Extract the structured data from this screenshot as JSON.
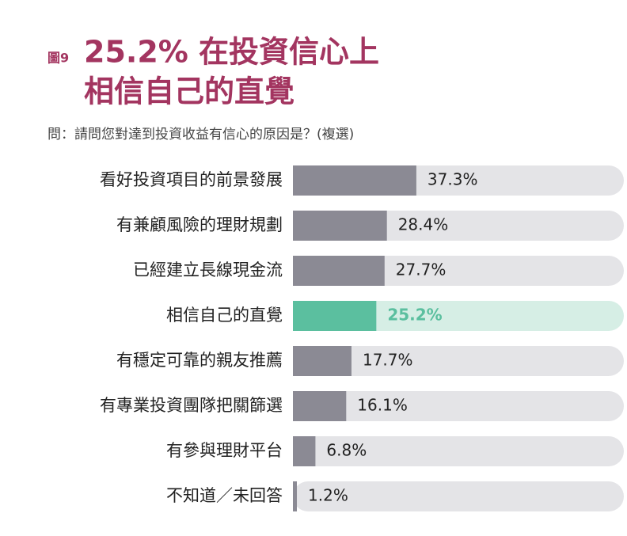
{
  "chart_data": {
    "type": "barh",
    "figure_label": "圖9",
    "title": [
      "25.2% 在投資信心上",
      "相信自己的直覺"
    ],
    "subtitle": "問：請問您對達到投資收益有信心的原因是？(複選)",
    "categories": [
      "看好投資項目的前景發展",
      "有兼顧風險的理財規劃",
      "已經建立長線現金流",
      "相信自己的直覺",
      "有穩定可靠的親友推薦",
      "有專業投資團隊把關篩選",
      "有參與理財平台",
      "不知道／未回答"
    ],
    "values": [
      37.3,
      28.4,
      27.7,
      25.2,
      17.7,
      16.1,
      6.8,
      1.2
    ],
    "value_labels": [
      "37.3%",
      "28.4%",
      "27.7%",
      "25.2%",
      "17.7%",
      "16.1%",
      "6.8%",
      "1.2%"
    ],
    "xlim": [
      0,
      100
    ],
    "color": "#8b8a94",
    "track_color": "#e4e4e7",
    "highlight_index": 3,
    "highlight_color": "#5bbf9f",
    "highlight_track_color": "#d6eee5",
    "title_color": "#a33560"
  }
}
